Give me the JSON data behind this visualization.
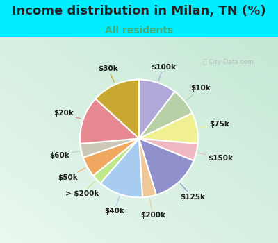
{
  "title": "Income distribution in Milan, TN (%)",
  "subtitle": "All residents",
  "watermark": "Ⓢ City-Data.com",
  "slices": [
    {
      "label": "$100k",
      "value": 11,
      "color": "#b0a8d8"
    },
    {
      "label": "$10k",
      "value": 8,
      "color": "#b8d0a8"
    },
    {
      "label": "$75k",
      "value": 9,
      "color": "#f0f090"
    },
    {
      "label": "$150k",
      "value": 5,
      "color": "#f0b8c0"
    },
    {
      "label": "$125k",
      "value": 15,
      "color": "#9090cc"
    },
    {
      "label": "$200k",
      "value": 4,
      "color": "#f0c898"
    },
    {
      "label": "$40k",
      "value": 13,
      "color": "#a8ccf0"
    },
    {
      "label": "> $200k",
      "value": 3,
      "color": "#c0e888"
    },
    {
      "label": "$50k",
      "value": 6,
      "color": "#f0a860"
    },
    {
      "label": "$60k",
      "value": 4,
      "color": "#ccc8b8"
    },
    {
      "label": "$20k",
      "value": 14,
      "color": "#e88890"
    },
    {
      "label": "$30k",
      "value": 14,
      "color": "#c8a830"
    }
  ],
  "bg_top_color": "#00eeff",
  "chart_bg_left": "#e8f8f0",
  "chart_bg_right": "#c8e8d8",
  "title_fontsize": 13,
  "subtitle_fontsize": 10,
  "subtitle_color": "#4aaa70",
  "label_fontsize": 7.5,
  "title_color": "#222222"
}
